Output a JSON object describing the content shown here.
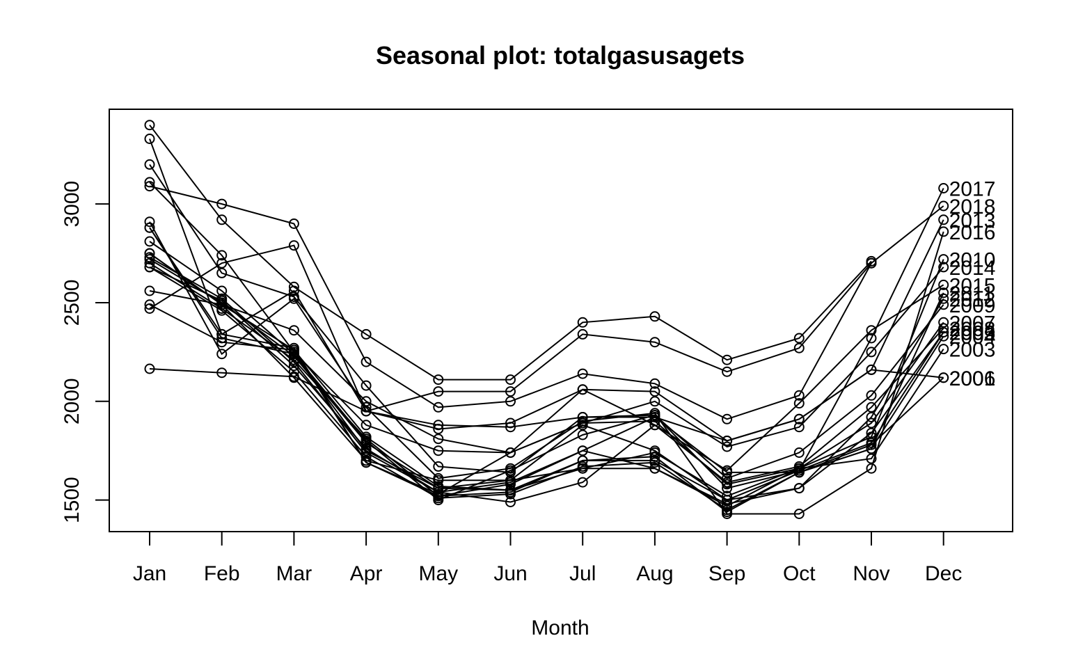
{
  "chart_data": {
    "type": "line",
    "title": "Seasonal plot: totalgasusagets",
    "xlabel": "Month",
    "ylabel": "",
    "categories": [
      "Jan",
      "Feb",
      "Mar",
      "Apr",
      "May",
      "Jun",
      "Jul",
      "Aug",
      "Sep",
      "Oct",
      "Nov",
      "Dec"
    ],
    "yticks": [
      1500,
      2000,
      2500,
      3000
    ],
    "ylim": [
      1340,
      3480
    ],
    "grid": false,
    "legend": "none",
    "series": [
      {
        "name": "2001",
        "values": [
          2165,
          2145,
          2125,
          1950,
          1880,
          1870,
          1920,
          1920,
          1800,
          1910,
          2160,
          2120
        ]
      },
      {
        "name": "2002",
        "values": [
          2720,
          2500,
          2230,
          1790,
          1560,
          1550,
          1700,
          1700,
          1500,
          1650,
          1790,
          2350
        ]
      },
      {
        "name": "2003",
        "values": [
          2750,
          2490,
          2260,
          1820,
          1570,
          1550,
          1660,
          1740,
          1520,
          1660,
          1710,
          2265
        ]
      },
      {
        "name": "2004",
        "values": [
          2700,
          2470,
          2210,
          1810,
          1520,
          1540,
          1700,
          1720,
          1440,
          1640,
          1760,
          2330
        ]
      },
      {
        "name": "2005",
        "values": [
          2730,
          2520,
          2200,
          1740,
          1540,
          1590,
          1750,
          1660,
          1480,
          1560,
          1840,
          2350
        ]
      },
      {
        "name": "2006",
        "values": [
          2680,
          2460,
          2150,
          1720,
          1510,
          1530,
          1670,
          1690,
          1450,
          1640,
          1780,
          2120
        ]
      },
      {
        "name": "2007",
        "values": [
          2880,
          2320,
          2240,
          1750,
          1560,
          1600,
          1660,
          1660,
          1470,
          1660,
          1890,
          2400
        ]
      },
      {
        "name": "2008",
        "values": [
          2680,
          2510,
          2180,
          1760,
          1540,
          1490,
          1590,
          1880,
          1590,
          1670,
          1970,
          2370
        ]
      },
      {
        "name": "2009",
        "values": [
          2810,
          2560,
          2240,
          1800,
          1500,
          1650,
          1830,
          1930,
          1610,
          1740,
          2030,
          2490
        ]
      },
      {
        "name": "2010",
        "values": [
          2880,
          2340,
          2270,
          1690,
          1530,
          1740,
          1890,
          1900,
          1580,
          1660,
          1820,
          2720
        ]
      },
      {
        "name": "2011",
        "values": [
          2490,
          2300,
          2260,
          1690,
          1520,
          1580,
          1750,
          1920,
          1640,
          1640,
          1760,
          2550
        ]
      },
      {
        "name": "2012",
        "values": [
          2560,
          2490,
          2120,
          1700,
          1600,
          1600,
          1880,
          1750,
          1500,
          1560,
          1920,
          2520
        ]
      },
      {
        "name": "2013",
        "values": [
          3110,
          2740,
          2250,
          1880,
          1750,
          1740,
          2060,
          2050,
          1800,
          1910,
          2160,
          2920
        ]
      },
      {
        "name": "2014",
        "values": [
          2750,
          2490,
          2360,
          2000,
          1810,
          1740,
          1890,
          2000,
          1770,
          1870,
          2250,
          2680
        ]
      },
      {
        "name": "2015",
        "values": [
          2470,
          2700,
          2790,
          1950,
          1860,
          1890,
          2060,
          1880,
          1650,
          1990,
          2360,
          2590
        ]
      },
      {
        "name": "2016",
        "values": [
          2910,
          2240,
          2520,
          1970,
          1610,
          1660,
          1900,
          1940,
          1430,
          1430,
          1660,
          2860
        ]
      },
      {
        "name": "2017",
        "values": [
          3200,
          2650,
          2530,
          2080,
          1670,
          1640,
          1920,
          1930,
          1560,
          1650,
          2320,
          3080
        ]
      },
      {
        "name": "2018",
        "values": [
          3090,
          3000,
          2900,
          2200,
          1970,
          2000,
          2140,
          2090,
          1910,
          2030,
          2700,
          2990
        ]
      },
      {
        "name": "",
        "values": [
          3400,
          2920,
          2580,
          2340,
          2110,
          2110,
          2400,
          2430,
          2210,
          2320,
          2710,
          null
        ]
      },
      {
        "name": "",
        "values": [
          3330,
          2340,
          2560,
          1950,
          2050,
          2050,
          2340,
          2300,
          2150,
          2270,
          2700,
          null
        ]
      }
    ]
  }
}
